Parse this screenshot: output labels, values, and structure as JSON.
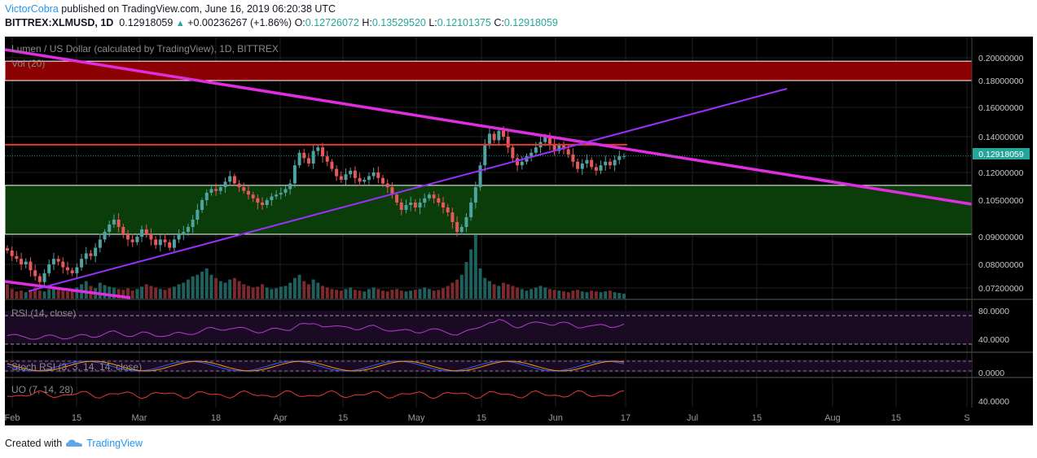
{
  "header": {
    "author": "VictorCobra",
    "published_text": "published on TradingView.com, June 16, 2019 06:20:38 UTC"
  },
  "ohlc": {
    "symbol": "BITTREX:XLMUSD, 1D",
    "last": "0.12918059",
    "change": "+0.00236267 (+1.86%)",
    "o_label": "O:",
    "o": "0.12726072",
    "h_label": "H:",
    "h": "0.13529520",
    "l_label": "L:",
    "l": "0.12101375",
    "c_label": "C:",
    "c": "0.12918059"
  },
  "legend": {
    "main": "Lumen / US Dollar (calculated by TradingView), 1D, BITTREX",
    "vol": "Vol (20)",
    "rsi": "RSI (14, close)",
    "stoch": "Stoch RSI (3, 3, 14, 14, close)",
    "uo": "UO (7, 14, 28)"
  },
  "footer": {
    "created_with": "Created with",
    "brand": "TradingView"
  },
  "colors": {
    "bg": "#000000",
    "up": "#4fa3a0",
    "down": "#e8575a",
    "magenta": "#e02de0",
    "purple": "#9b30ff",
    "red_line": "#e53935",
    "red_zone": "#8b0000",
    "green_zone": "#0b3d0b",
    "price_label": "#26a69a"
  },
  "chart_data": {
    "type": "candlestick",
    "title": "Lumen / US Dollar (calculated by TradingView), 1D, BITTREX",
    "x_ticks": [
      "Feb",
      "15",
      "Mar",
      "18",
      "Apr",
      "15",
      "May",
      "15",
      "Jun",
      "17",
      "Jul",
      "15",
      "Aug",
      "15",
      "S"
    ],
    "y_ticks": [
      "0.20000000",
      "0.18000000",
      "0.16000000",
      "0.14000000",
      "0.12000000",
      "0.10500000",
      "0.09000000",
      "0.08000000",
      "0.07200000"
    ],
    "last_price": "0.12918059",
    "zones": [
      {
        "name": "resistance",
        "from": 0.18,
        "to": 0.197
      },
      {
        "name": "support",
        "from": 0.091,
        "to": 0.113
      }
    ],
    "horizontal_line": 0.1355,
    "candles_close": [
      0.085,
      0.083,
      0.082,
      0.08,
      0.081,
      0.078,
      0.076,
      0.074,
      0.077,
      0.08,
      0.082,
      0.081,
      0.079,
      0.078,
      0.077,
      0.079,
      0.082,
      0.084,
      0.083,
      0.086,
      0.089,
      0.092,
      0.095,
      0.097,
      0.094,
      0.091,
      0.089,
      0.088,
      0.09,
      0.093,
      0.091,
      0.089,
      0.087,
      0.089,
      0.088,
      0.086,
      0.089,
      0.091,
      0.092,
      0.094,
      0.097,
      0.101,
      0.105,
      0.109,
      0.111,
      0.11,
      0.112,
      0.115,
      0.118,
      0.114,
      0.112,
      0.11,
      0.108,
      0.106,
      0.104,
      0.103,
      0.105,
      0.107,
      0.108,
      0.109,
      0.111,
      0.114,
      0.124,
      0.131,
      0.128,
      0.125,
      0.132,
      0.134,
      0.129,
      0.126,
      0.122,
      0.118,
      0.116,
      0.119,
      0.121,
      0.117,
      0.115,
      0.116,
      0.118,
      0.12,
      0.117,
      0.114,
      0.112,
      0.108,
      0.104,
      0.101,
      0.103,
      0.104,
      0.102,
      0.104,
      0.106,
      0.108,
      0.106,
      0.104,
      0.102,
      0.1,
      0.096,
      0.092,
      0.094,
      0.098,
      0.104,
      0.112,
      0.124,
      0.136,
      0.142,
      0.138,
      0.144,
      0.14,
      0.134,
      0.128,
      0.124,
      0.126,
      0.129,
      0.131,
      0.134,
      0.137,
      0.14,
      0.136,
      0.132,
      0.135,
      0.133,
      0.13,
      0.126,
      0.122,
      0.125,
      0.127,
      0.123,
      0.121,
      0.124,
      0.126,
      0.124,
      0.127,
      0.129,
      0.12918059
    ],
    "volume": [
      18,
      12,
      9,
      10,
      8,
      11,
      14,
      10,
      9,
      12,
      15,
      11,
      10,
      9,
      12,
      14,
      18,
      22,
      16,
      13,
      20,
      17,
      15,
      14,
      12,
      11,
      13,
      10,
      12,
      15,
      18,
      16,
      14,
      12,
      11,
      13,
      15,
      18,
      20,
      24,
      28,
      30,
      34,
      38,
      30,
      26,
      22,
      20,
      24,
      26,
      22,
      18,
      16,
      14,
      15,
      18,
      14,
      12,
      13,
      15,
      16,
      20,
      26,
      30,
      22,
      18,
      24,
      20,
      16,
      14,
      12,
      11,
      10,
      12,
      14,
      11,
      10,
      9,
      12,
      14,
      12,
      10,
      9,
      11,
      12,
      10,
      9,
      10,
      11,
      12,
      14,
      12,
      10,
      11,
      13,
      16,
      20,
      24,
      30,
      46,
      62,
      80,
      38,
      26,
      22,
      18,
      16,
      20,
      18,
      16,
      14,
      12,
      10,
      12,
      14,
      16,
      14,
      12,
      11,
      10,
      9,
      8,
      10,
      11,
      9,
      8,
      10,
      9,
      8,
      9,
      10,
      8,
      7,
      6
    ],
    "rsi_ticks": [
      "80.0000",
      "40.0000"
    ],
    "stoch_ticks": [
      "0.0000"
    ],
    "uo_ticks": [
      "40.0000"
    ]
  }
}
